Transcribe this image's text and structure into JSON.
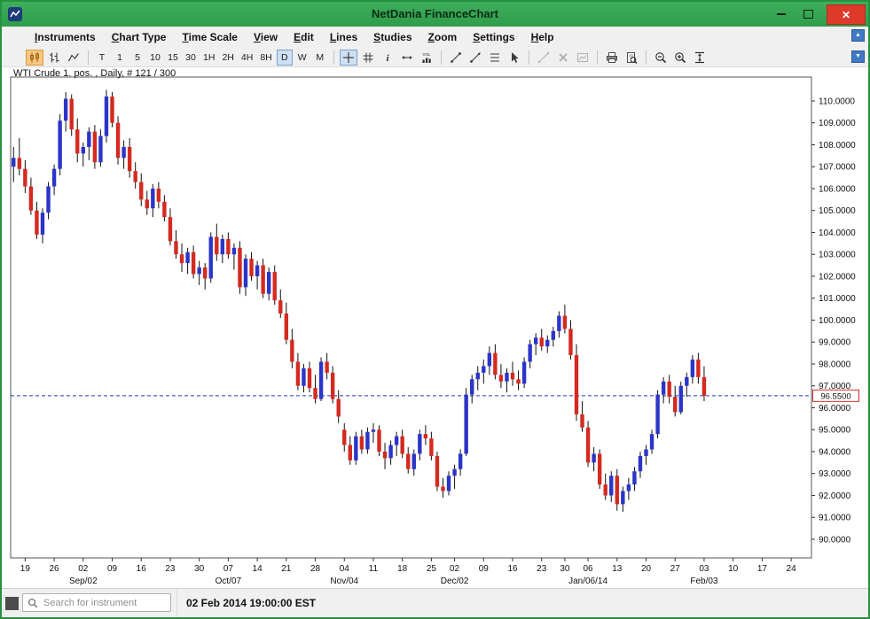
{
  "window": {
    "title": "NetDania FinanceChart",
    "icon": "app-icon",
    "buttons": [
      {
        "name": "minimize-button",
        "icon": "minimize-icon"
      },
      {
        "name": "maximize-button",
        "icon": "maximize-icon"
      },
      {
        "name": "close-button",
        "icon": "close-icon",
        "glyph": "✕"
      }
    ]
  },
  "menu": {
    "items": [
      {
        "id": "instruments",
        "label": "Instruments"
      },
      {
        "id": "chart-type",
        "label": "Chart Type"
      },
      {
        "id": "time-scale",
        "label": "Time Scale"
      },
      {
        "id": "view",
        "label": "View"
      },
      {
        "id": "edit",
        "label": "Edit"
      },
      {
        "id": "lines",
        "label": "Lines"
      },
      {
        "id": "studies",
        "label": "Studies"
      },
      {
        "id": "zoom",
        "label": "Zoom"
      },
      {
        "id": "settings",
        "label": "Settings"
      },
      {
        "id": "help",
        "label": "Help"
      }
    ]
  },
  "toolbar": {
    "groups": [
      {
        "items": [
          {
            "name": "candlestick-button",
            "icon": "candlestick-icon",
            "active": true,
            "style": "orange"
          },
          {
            "name": "bar-chart-button",
            "icon": "ohlc-bars-icon"
          },
          {
            "name": "line-chart-button",
            "icon": "line-chart-icon"
          }
        ]
      },
      {
        "items": [
          {
            "name": "timescale-tick-button",
            "label": "T"
          },
          {
            "name": "timescale-1-button",
            "label": "1"
          },
          {
            "name": "timescale-5-button",
            "label": "5"
          },
          {
            "name": "timescale-10-button",
            "label": "10"
          },
          {
            "name": "timescale-15-button",
            "label": "15"
          },
          {
            "name": "timescale-30-button",
            "label": "30"
          },
          {
            "name": "timescale-1h-button",
            "label": "1H"
          },
          {
            "name": "timescale-2h-button",
            "label": "2H"
          },
          {
            "name": "timescale-4h-button",
            "label": "4H"
          },
          {
            "name": "timescale-8h-button",
            "label": "8H"
          },
          {
            "name": "timescale-daily-button",
            "label": "D",
            "active": true
          },
          {
            "name": "timescale-weekly-button",
            "label": "W"
          },
          {
            "name": "timescale-monthly-button",
            "label": "M"
          }
        ]
      },
      {
        "items": [
          {
            "name": "crosshair-button",
            "icon": "crosshair-icon",
            "active": true
          },
          {
            "name": "grid-button",
            "icon": "grid-icon"
          },
          {
            "name": "info-button",
            "icon": "info-icon"
          },
          {
            "name": "scroll-chart-button",
            "icon": "horizontal-arrows-icon"
          },
          {
            "name": "volume-button",
            "icon": "volume-icon"
          }
        ]
      },
      {
        "items": [
          {
            "name": "trend-line-button",
            "icon": "trend-line-icon"
          },
          {
            "name": "ray-line-button",
            "icon": "ray-line-icon"
          },
          {
            "name": "fibonacci-button",
            "icon": "fibonacci-icon"
          },
          {
            "name": "pointer-button",
            "icon": "pointer-icon"
          }
        ]
      },
      {
        "items": [
          {
            "name": "remove-line-button",
            "icon": "remove-line-icon",
            "disabled": true
          },
          {
            "name": "delete-button",
            "icon": "delete-x-icon",
            "disabled": true
          },
          {
            "name": "study-window-button",
            "icon": "mini-chart-icon",
            "disabled": true
          }
        ]
      },
      {
        "items": [
          {
            "name": "print-button",
            "icon": "printer-icon"
          },
          {
            "name": "print-preview-button",
            "icon": "print-preview-icon"
          }
        ]
      },
      {
        "items": [
          {
            "name": "zoom-out-button",
            "icon": "zoom-out-icon"
          },
          {
            "name": "zoom-in-button",
            "icon": "zoom-in-icon"
          },
          {
            "name": "fit-vertical-button",
            "icon": "fit-vertical-icon"
          }
        ]
      }
    ],
    "right_buttons": [
      {
        "name": "panel-scroll-up-button",
        "icon": "arrow-up-icon",
        "glyph": "▲"
      },
      {
        "name": "panel-scroll-down-button",
        "icon": "arrow-down-icon",
        "glyph": "▼"
      }
    ]
  },
  "chart_data": {
    "type": "candlestick",
    "instrument": "WTI Crude 1. pos.",
    "timeframe": "Daily",
    "counter": "# 121 / 300",
    "label": "WTI Crude 1. pos. , Daily, # 121 / 300",
    "ylim": [
      89.15,
      111.09
    ],
    "y_ticks": [
      110,
      109,
      108,
      107,
      106,
      105,
      104,
      103,
      102,
      101,
      100,
      99,
      98,
      97,
      96,
      95,
      94,
      93,
      92,
      91,
      90
    ],
    "y_tick_decimals": 4,
    "grid": false,
    "current_price": 96.55,
    "current_price_label": "96.5500",
    "dashed_line_price": 96.55,
    "total_slots": 138,
    "x_ticks": [
      {
        "i": 2,
        "d": "19"
      },
      {
        "i": 7,
        "d": "26"
      },
      {
        "i": 12,
        "d": "02",
        "m": "Sep/02"
      },
      {
        "i": 17,
        "d": "09"
      },
      {
        "i": 22,
        "d": "16"
      },
      {
        "i": 27,
        "d": "23"
      },
      {
        "i": 32,
        "d": "30"
      },
      {
        "i": 37,
        "d": "07",
        "m": "Oct/07"
      },
      {
        "i": 42,
        "d": "14"
      },
      {
        "i": 47,
        "d": "21"
      },
      {
        "i": 52,
        "d": "28"
      },
      {
        "i": 57,
        "d": "04",
        "m": "Nov/04"
      },
      {
        "i": 62,
        "d": "11"
      },
      {
        "i": 67,
        "d": "18"
      },
      {
        "i": 72,
        "d": "25"
      },
      {
        "i": 76,
        "d": "02",
        "m": "Dec/02"
      },
      {
        "i": 81,
        "d": "09"
      },
      {
        "i": 86,
        "d": "16"
      },
      {
        "i": 91,
        "d": "23"
      },
      {
        "i": 95,
        "d": "30"
      },
      {
        "i": 99,
        "d": "06",
        "m": "Jan/06/14"
      },
      {
        "i": 104,
        "d": "13"
      },
      {
        "i": 109,
        "d": "20"
      },
      {
        "i": 114,
        "d": "27"
      },
      {
        "i": 119,
        "d": "03",
        "m": "Feb/03"
      },
      {
        "i": 124,
        "d": "10"
      },
      {
        "i": 129,
        "d": "17"
      },
      {
        "i": 134,
        "d": "24"
      }
    ],
    "candles": [
      [
        107.0,
        107.9,
        106.3,
        107.4
      ],
      [
        107.4,
        108.3,
        106.6,
        106.9
      ],
      [
        106.9,
        107.3,
        105.8,
        106.1
      ],
      [
        106.1,
        106.5,
        104.8,
        105.0
      ],
      [
        105.0,
        105.4,
        103.7,
        103.9
      ],
      [
        103.9,
        105.1,
        103.5,
        104.9
      ],
      [
        104.9,
        106.3,
        104.6,
        106.1
      ],
      [
        106.1,
        107.1,
        105.7,
        106.9
      ],
      [
        106.9,
        109.4,
        106.6,
        109.1
      ],
      [
        109.1,
        110.4,
        108.6,
        110.1
      ],
      [
        110.1,
        110.3,
        108.4,
        108.7
      ],
      [
        108.7,
        109.2,
        107.2,
        107.6
      ],
      [
        107.6,
        108.1,
        107.0,
        107.9
      ],
      [
        107.9,
        108.8,
        107.3,
        108.6
      ],
      [
        108.6,
        108.9,
        106.9,
        107.2
      ],
      [
        107.2,
        108.7,
        107.0,
        108.4
      ],
      [
        108.4,
        110.5,
        108.1,
        110.2
      ],
      [
        110.2,
        110.4,
        108.8,
        109.0
      ],
      [
        109.0,
        109.3,
        107.1,
        107.4
      ],
      [
        107.4,
        108.2,
        106.9,
        107.9
      ],
      [
        107.9,
        108.3,
        106.5,
        106.8
      ],
      [
        106.8,
        107.2,
        106.0,
        106.3
      ],
      [
        106.3,
        106.7,
        105.2,
        105.5
      ],
      [
        105.5,
        105.9,
        104.8,
        105.1
      ],
      [
        105.1,
        106.2,
        104.7,
        106.0
      ],
      [
        106.0,
        106.3,
        105.1,
        105.4
      ],
      [
        105.4,
        105.7,
        104.5,
        104.7
      ],
      [
        104.7,
        105.1,
        103.4,
        103.6
      ],
      [
        103.6,
        104.1,
        102.8,
        103.0
      ],
      [
        103.0,
        103.5,
        102.2,
        102.6
      ],
      [
        102.6,
        103.3,
        102.1,
        103.1
      ],
      [
        103.1,
        103.4,
        101.9,
        102.1
      ],
      [
        102.1,
        102.7,
        101.6,
        102.4
      ],
      [
        102.4,
        102.6,
        101.4,
        101.9
      ],
      [
        101.9,
        104.0,
        101.7,
        103.8
      ],
      [
        103.8,
        104.4,
        102.7,
        103.0
      ],
      [
        103.0,
        103.9,
        102.6,
        103.7
      ],
      [
        103.7,
        104.0,
        102.8,
        103.0
      ],
      [
        103.0,
        103.5,
        102.3,
        103.3
      ],
      [
        103.3,
        103.6,
        101.2,
        101.5
      ],
      [
        101.5,
        103.0,
        101.1,
        102.8
      ],
      [
        102.8,
        103.1,
        101.8,
        102.0
      ],
      [
        102.0,
        102.7,
        101.4,
        102.5
      ],
      [
        102.5,
        102.8,
        101.0,
        101.2
      ],
      [
        101.2,
        102.4,
        100.9,
        102.2
      ],
      [
        102.2,
        102.5,
        100.7,
        100.9
      ],
      [
        100.9,
        101.4,
        100.1,
        100.3
      ],
      [
        100.3,
        100.8,
        98.9,
        99.1
      ],
      [
        99.1,
        99.6,
        97.8,
        98.1
      ],
      [
        98.1,
        98.5,
        96.8,
        97.0
      ],
      [
        97.0,
        98.0,
        96.7,
        97.8
      ],
      [
        97.8,
        98.1,
        96.7,
        96.9
      ],
      [
        96.9,
        97.5,
        96.2,
        96.4
      ],
      [
        96.4,
        98.3,
        96.3,
        98.1
      ],
      [
        98.1,
        98.5,
        97.3,
        97.6
      ],
      [
        97.6,
        97.9,
        96.2,
        96.4
      ],
      [
        96.4,
        96.8,
        95.3,
        95.6
      ],
      [
        95.0,
        95.3,
        94.0,
        94.3
      ],
      [
        94.3,
        94.7,
        93.4,
        93.6
      ],
      [
        93.6,
        94.9,
        93.4,
        94.7
      ],
      [
        94.7,
        95.0,
        93.9,
        94.1
      ],
      [
        94.1,
        95.1,
        93.9,
        94.9
      ],
      [
        94.9,
        95.3,
        94.4,
        95.0
      ],
      [
        95.0,
        95.2,
        93.8,
        94.0
      ],
      [
        94.0,
        94.4,
        93.2,
        93.7
      ],
      [
        93.7,
        94.5,
        93.4,
        94.3
      ],
      [
        94.3,
        94.9,
        93.8,
        94.7
      ],
      [
        94.7,
        95.0,
        93.7,
        93.9
      ],
      [
        93.9,
        94.2,
        93.0,
        93.2
      ],
      [
        93.2,
        94.1,
        92.9,
        93.9
      ],
      [
        93.9,
        95.0,
        93.6,
        94.8
      ],
      [
        94.8,
        95.2,
        94.3,
        94.6
      ],
      [
        94.6,
        94.9,
        93.6,
        93.8
      ],
      [
        93.8,
        94.0,
        92.2,
        92.4
      ],
      [
        92.4,
        92.8,
        91.9,
        92.2
      ],
      [
        92.2,
        93.1,
        92.0,
        92.9
      ],
      [
        92.9,
        93.4,
        92.3,
        93.2
      ],
      [
        93.2,
        94.1,
        92.9,
        93.9
      ],
      [
        93.9,
        96.9,
        93.8,
        96.6
      ],
      [
        96.6,
        97.5,
        96.2,
        97.3
      ],
      [
        97.3,
        97.9,
        96.8,
        97.6
      ],
      [
        97.6,
        98.2,
        97.1,
        97.9
      ],
      [
        97.9,
        98.8,
        97.5,
        98.5
      ],
      [
        98.5,
        98.9,
        97.3,
        97.5
      ],
      [
        97.5,
        98.0,
        96.9,
        97.2
      ],
      [
        97.2,
        97.8,
        96.7,
        97.6
      ],
      [
        97.6,
        98.1,
        97.0,
        97.3
      ],
      [
        97.3,
        97.7,
        96.8,
        97.1
      ],
      [
        97.1,
        98.3,
        96.9,
        98.1
      ],
      [
        98.1,
        99.1,
        97.8,
        98.9
      ],
      [
        98.9,
        99.4,
        98.4,
        99.2
      ],
      [
        99.2,
        99.6,
        98.6,
        98.8
      ],
      [
        98.8,
        99.3,
        98.5,
        99.1
      ],
      [
        99.1,
        99.7,
        98.8,
        99.5
      ],
      [
        99.5,
        100.4,
        99.2,
        100.2
      ],
      [
        100.2,
        100.7,
        99.4,
        99.6
      ],
      [
        99.6,
        100.0,
        98.2,
        98.4
      ],
      [
        98.4,
        98.9,
        95.4,
        95.7
      ],
      [
        95.7,
        96.3,
        94.9,
        95.1
      ],
      [
        95.1,
        95.4,
        93.3,
        93.5
      ],
      [
        93.5,
        94.2,
        93.1,
        93.9
      ],
      [
        93.9,
        94.1,
        92.3,
        92.5
      ],
      [
        92.5,
        93.0,
        91.8,
        92.0
      ],
      [
        92.0,
        93.1,
        91.7,
        92.9
      ],
      [
        92.9,
        93.2,
        91.3,
        91.6
      ],
      [
        91.6,
        92.4,
        91.25,
        92.2
      ],
      [
        92.2,
        92.8,
        91.8,
        92.5
      ],
      [
        92.5,
        93.3,
        92.2,
        93.1
      ],
      [
        93.1,
        94.0,
        92.8,
        93.8
      ],
      [
        93.8,
        94.3,
        93.4,
        94.1
      ],
      [
        94.1,
        95.0,
        93.9,
        94.8
      ],
      [
        94.8,
        96.8,
        94.6,
        96.6
      ],
      [
        96.6,
        97.4,
        96.2,
        97.2
      ],
      [
        97.2,
        97.5,
        96.2,
        96.5
      ],
      [
        96.5,
        97.0,
        95.6,
        95.8
      ],
      [
        95.8,
        97.2,
        95.7,
        97.0
      ],
      [
        97.0,
        97.6,
        96.5,
        97.4
      ],
      [
        97.4,
        98.4,
        97.1,
        98.2
      ],
      [
        98.2,
        98.5,
        97.1,
        97.4
      ],
      [
        97.4,
        97.9,
        96.3,
        96.55
      ]
    ],
    "colors": {
      "up": "#2b35c8",
      "down": "#d42a20",
      "wick": "#111111",
      "dashed_line": "#2233bb",
      "price_box_border": "#d03030",
      "axis_text": "#111111",
      "plot_border": "#555555"
    }
  },
  "statusbar": {
    "search_placeholder": "Search for instrument",
    "search_icon": "search-icon",
    "timestamp": "02 Feb 2014 19:00:00 EST"
  }
}
